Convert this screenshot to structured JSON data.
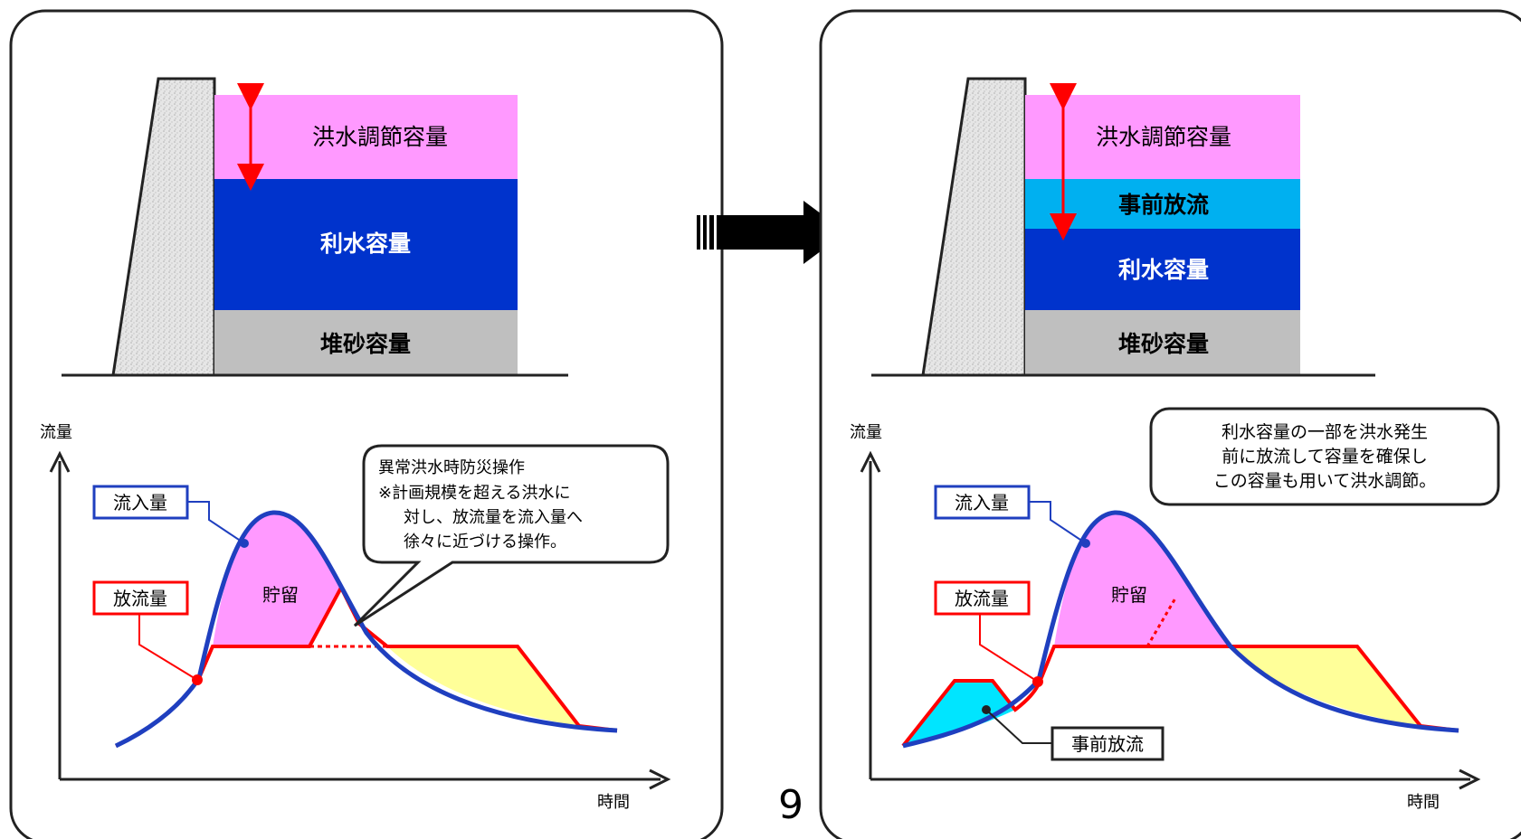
{
  "page_number": "9",
  "left_panel": {
    "reservoir": {
      "flood_control": "洪水調節容量",
      "water_use": "利水容量",
      "sediment": "堆砂容量"
    },
    "graph": {
      "y_label": "流量",
      "x_label": "時間",
      "inflow_label": "流入量",
      "outflow_label": "放流量",
      "storage_label": "貯留",
      "callout": {
        "title": "異常洪水時防災操作",
        "line1": "※計画規模を超える洪水に",
        "line2": "対し、放流量を流入量へ",
        "line3": "徐々に近づける操作。"
      }
    }
  },
  "right_panel": {
    "reservoir": {
      "flood_control": "洪水調節容量",
      "pre_release": "事前放流",
      "water_use": "利水容量",
      "sediment": "堆砂容量"
    },
    "graph": {
      "y_label": "流量",
      "x_label": "時間",
      "inflow_label": "流入量",
      "outflow_label": "放流量",
      "storage_label": "貯留",
      "pre_release_label": "事前放流",
      "note": {
        "line1": "利水容量の一部を洪水発生",
        "line2": "前に放流して容量を確保し",
        "line3": "この容量も用いて洪水調節。"
      }
    }
  },
  "colors": {
    "flood_control": "#ff99ff",
    "pre_release": "#00b0f0",
    "water_use": "#0033cc",
    "sediment": "#bfbfbf",
    "inflow": "#1f3fbf",
    "outflow": "#ff0000",
    "storage": "#ff99ff",
    "yellow": "#ffff99",
    "cyan": "#00e5ff"
  }
}
